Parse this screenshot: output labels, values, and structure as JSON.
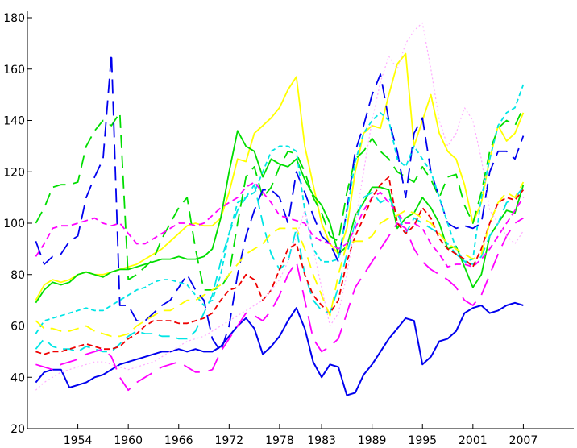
{
  "chart_data": {
    "type": "line",
    "title": "",
    "xlabel": "",
    "ylabel": "",
    "xlim": [
      1948,
      2013
    ],
    "ylim": [
      20,
      180
    ],
    "x_ticks": [
      1954,
      1960,
      1966,
      1972,
      1978,
      1983,
      1989,
      1995,
      2001,
      2007
    ],
    "x_tick_labels": [
      "1954",
      "1960",
      "1966",
      "1972",
      "1978",
      "1983",
      "1989",
      "1995",
      "2001",
      "2007"
    ],
    "y_ticks": [
      20,
      40,
      60,
      80,
      100,
      120,
      140,
      160,
      180
    ],
    "y_tick_labels": [
      "20",
      "40",
      "60",
      "80",
      "100",
      "120",
      "140",
      "160",
      "180"
    ],
    "grid": false,
    "legend": "none",
    "x": [
      1949,
      1950,
      1951,
      1952,
      1953,
      1954,
      1955,
      1956,
      1957,
      1958,
      1959,
      1960,
      1961,
      1962,
      1963,
      1964,
      1965,
      1966,
      1967,
      1968,
      1969,
      1970,
      1971,
      1972,
      1973,
      1974,
      1975,
      1976,
      1977,
      1978,
      1979,
      1980,
      1981,
      1982,
      1983,
      1984,
      1985,
      1986,
      1987,
      1988,
      1989,
      1990,
      1991,
      1992,
      1993,
      1994,
      1995,
      1996,
      1997,
      1998,
      1999,
      2000,
      2001,
      2002,
      2003,
      2004,
      2005,
      2006,
      2007
    ],
    "series": [
      {
        "color": "#ffff00",
        "dash": "solid",
        "width": 1.8,
        "values": [
          70,
          76,
          78,
          77,
          78,
          80,
          81,
          80,
          80,
          81,
          82,
          83,
          84,
          86,
          88,
          90,
          93,
          96,
          99,
          100,
          99,
          99,
          102,
          112,
          125,
          124,
          135,
          138,
          141,
          145,
          152,
          157,
          130,
          115,
          100,
          92,
          88,
          98,
          120,
          135,
          138,
          137,
          150,
          162,
          166,
          130,
          140,
          150,
          135,
          128,
          125,
          115,
          100,
          108,
          125,
          138,
          132,
          135,
          143
        ]
      },
      {
        "color": "#00dd00",
        "dash": "solid",
        "width": 1.8,
        "values": [
          69,
          74,
          77,
          76,
          77,
          80,
          81,
          80,
          79,
          81,
          82,
          82,
          83,
          84,
          85,
          86,
          86,
          87,
          86,
          86,
          87,
          90,
          102,
          120,
          136,
          130,
          128,
          118,
          125,
          123,
          122,
          125,
          117,
          111,
          107,
          100,
          88,
          91,
          103,
          108,
          114,
          114,
          113,
          98,
          102,
          104,
          110,
          106,
          100,
          90,
          91,
          83,
          75,
          80,
          95,
          100,
          105,
          104,
          115
        ]
      },
      {
        "color": "#0000ee",
        "dash": "solid",
        "width": 2.0,
        "values": [
          38,
          42,
          43,
          43,
          36,
          37,
          38,
          40,
          41,
          43,
          45,
          46,
          47,
          48,
          49,
          50,
          50,
          51,
          50,
          51,
          50,
          50,
          52,
          56,
          60,
          63,
          59,
          49,
          52,
          56,
          62,
          67,
          59,
          46,
          40,
          45,
          44,
          33,
          34,
          41,
          45,
          50,
          55,
          59,
          63,
          62,
          45,
          48,
          54,
          55,
          58,
          65,
          67,
          68,
          65,
          66,
          68,
          69,
          68
        ]
      },
      {
        "color": "#00dd00",
        "dash": "16,9",
        "width": 1.8,
        "values": [
          100,
          106,
          114,
          115,
          115,
          116,
          130,
          136,
          140,
          138,
          143,
          78,
          80,
          83,
          86,
          94,
          100,
          106,
          110,
          90,
          74,
          74,
          75,
          80,
          100,
          118,
          122,
          110,
          114,
          122,
          128,
          127,
          120,
          110,
          104,
          95,
          93,
          112,
          125,
          128,
          133,
          128,
          125,
          120,
          118,
          116,
          122,
          117,
          110,
          118,
          119,
          107,
          100,
          112,
          128,
          137,
          140,
          138,
          145
        ]
      },
      {
        "color": "#0000ee",
        "dash": "18,9",
        "width": 1.8,
        "values": [
          93,
          84,
          87,
          88,
          93,
          95,
          110,
          118,
          125,
          166,
          68,
          68,
          62,
          62,
          65,
          68,
          70,
          75,
          80,
          74,
          70,
          55,
          50,
          60,
          80,
          95,
          105,
          113,
          113,
          110,
          100,
          120,
          112,
          103,
          95,
          92,
          85,
          105,
          128,
          138,
          150,
          158,
          140,
          128,
          110,
          135,
          141,
          120,
          110,
          100,
          98,
          99,
          98,
          100,
          120,
          128,
          128,
          125,
          134
        ]
      },
      {
        "color": "#00e5e5",
        "dash": "6,4",
        "width": 1.8,
        "values": [
          57,
          62,
          63,
          64,
          65,
          66,
          67,
          66,
          66,
          68,
          70,
          72,
          74,
          75,
          77,
          78,
          78,
          77,
          76,
          72,
          68,
          70,
          80,
          96,
          108,
          110,
          112,
          120,
          128,
          130,
          130,
          128,
          105,
          90,
          85,
          85,
          86,
          104,
          124,
          135,
          140,
          143,
          140,
          125,
          122,
          130,
          125,
          120,
          110,
          100,
          90,
          85,
          86,
          110,
          125,
          138,
          143,
          145,
          154
        ]
      },
      {
        "color": "#00e5e5",
        "dash": "14,8",
        "width": 1.8,
        "values": [
          51,
          55,
          52,
          51,
          51,
          50,
          52,
          51,
          50,
          50,
          53,
          56,
          58,
          57,
          57,
          56,
          56,
          55,
          55,
          58,
          65,
          72,
          85,
          96,
          105,
          110,
          115,
          100,
          88,
          82,
          85,
          98,
          80,
          70,
          66,
          65,
          75,
          88,
          100,
          110,
          112,
          108,
          110,
          104,
          96,
          102,
          100,
          98,
          96,
          92,
          88,
          85,
          84,
          87,
          95,
          100,
          108,
          110,
          114
        ]
      },
      {
        "color": "#ff00ff",
        "dash": "8,5",
        "width": 1.8,
        "values": [
          87,
          92,
          98,
          99,
          99,
          100,
          101,
          102,
          100,
          99,
          100,
          96,
          92,
          92,
          94,
          96,
          98,
          100,
          100,
          99,
          100,
          103,
          106,
          108,
          110,
          114,
          116,
          112,
          108,
          103,
          102,
          101,
          100,
          95,
          93,
          92,
          90,
          92,
          98,
          105,
          110,
          112,
          108,
          104,
          100,
          100,
          98,
          92,
          88,
          83,
          84,
          84,
          83,
          86,
          90,
          95,
          100,
          105,
          110
        ]
      },
      {
        "color": "#ff00ff",
        "dash": "22,11",
        "width": 1.8,
        "values": [
          45,
          44,
          43,
          45,
          46,
          47,
          49,
          50,
          51,
          48,
          40,
          35,
          38,
          40,
          42,
          44,
          45,
          46,
          44,
          42,
          42,
          43,
          50,
          55,
          60,
          65,
          64,
          62,
          66,
          72,
          80,
          85,
          70,
          55,
          50,
          52,
          55,
          65,
          75,
          80,
          85,
          90,
          95,
          100,
          98,
          90,
          85,
          82,
          80,
          78,
          75,
          70,
          68,
          72,
          80,
          88,
          95,
          100,
          102
        ]
      },
      {
        "color": "#ee0000",
        "dash": "7,4",
        "width": 1.8,
        "values": [
          50,
          49,
          50,
          50,
          51,
          52,
          53,
          52,
          51,
          51,
          52,
          55,
          57,
          60,
          62,
          62,
          62,
          61,
          61,
          62,
          63,
          65,
          70,
          74,
          75,
          80,
          78,
          70,
          74,
          82,
          90,
          92,
          80,
          72,
          68,
          65,
          70,
          85,
          95,
          102,
          110,
          115,
          118,
          100,
          96,
          99,
          106,
          102,
          94,
          90,
          88,
          86,
          83,
          90,
          100,
          108,
          110,
          109,
          113
        ]
      },
      {
        "color": "#ffff00",
        "dash": "14,8",
        "width": 1.8,
        "values": [
          62,
          59,
          59,
          58,
          58,
          59,
          60,
          58,
          57,
          56,
          56,
          57,
          60,
          62,
          64,
          66,
          66,
          68,
          70,
          70,
          72,
          74,
          76,
          80,
          84,
          88,
          90,
          92,
          96,
          98,
          98,
          98,
          90,
          80,
          72,
          64,
          80,
          92,
          93,
          93,
          95,
          100,
          102,
          103,
          105,
          104,
          102,
          100,
          96,
          92,
          90,
          88,
          86,
          88,
          100,
          108,
          112,
          110,
          116
        ]
      },
      {
        "color": "#ffaaff",
        "dash": "2,3",
        "width": 1.2,
        "values": [
          35,
          38,
          40,
          42,
          43,
          44,
          45,
          46,
          46,
          45,
          44,
          43,
          44,
          45,
          46,
          48,
          50,
          52,
          54,
          55,
          56,
          58,
          60,
          62,
          64,
          66,
          68,
          70,
          74,
          78,
          85,
          95,
          105,
          90,
          75,
          60,
          65,
          80,
          100,
          120,
          140,
          155,
          165,
          160,
          170,
          175,
          178,
          160,
          140,
          130,
          135,
          145,
          140,
          125,
          105,
          100,
          95,
          92,
          97
        ]
      }
    ]
  }
}
